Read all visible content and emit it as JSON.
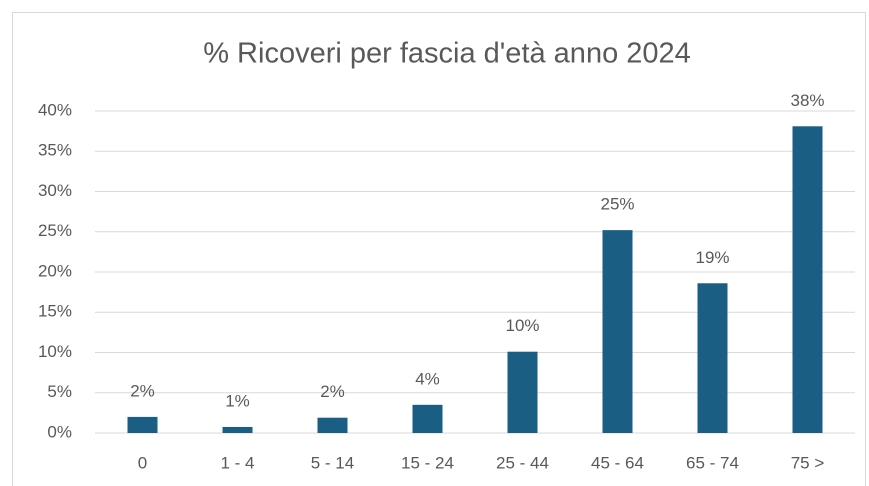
{
  "chart_data": {
    "type": "bar",
    "title": "% Ricoveri per fascia d'età anno 2024",
    "categories": [
      "0",
      "1 - 4",
      "5 - 14",
      "15 - 24",
      "25 - 44",
      "45 - 64",
      "65 - 74",
      "75 >"
    ],
    "values": [
      2.0,
      0.75,
      1.9,
      3.5,
      10.1,
      25.2,
      18.6,
      38.1
    ],
    "value_labels": [
      "2%",
      "1%",
      "2%",
      "4%",
      "10%",
      "25%",
      "19%",
      "38%"
    ],
    "color": "#1b5e84",
    "ylim": [
      0,
      40
    ],
    "yticks": [
      {
        "value": 0,
        "label": "0%"
      },
      {
        "value": 5,
        "label": "5%"
      },
      {
        "value": 10,
        "label": "10%"
      },
      {
        "value": 15,
        "label": "15%"
      },
      {
        "value": 20,
        "label": "20%"
      },
      {
        "value": 25,
        "label": "25%"
      },
      {
        "value": 30,
        "label": "30%"
      },
      {
        "value": 35,
        "label": "35%"
      },
      {
        "value": 40,
        "label": "40%"
      }
    ],
    "grid": true
  }
}
